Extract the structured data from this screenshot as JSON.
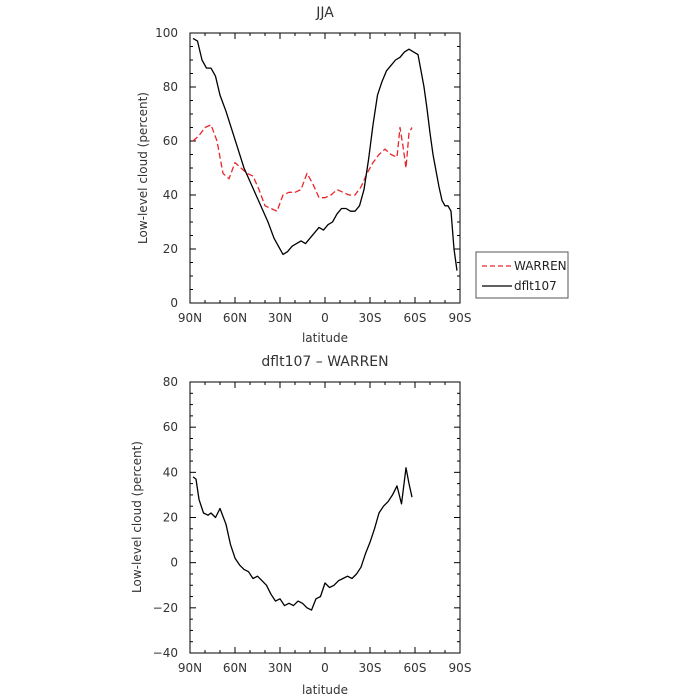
{
  "chart_data": [
    {
      "type": "line",
      "title": "JJA",
      "xlabel": "latitude",
      "ylabel": "Low-level cloud (percent)",
      "xlim": [
        90,
        -90
      ],
      "ylim": [
        0,
        100
      ],
      "xticks": [
        90,
        60,
        30,
        0,
        -30,
        -60,
        -90
      ],
      "xtick_labels": [
        "90N",
        "60N",
        "30N",
        "0",
        "30S",
        "60S",
        "90S"
      ],
      "yticks": [
        0,
        20,
        40,
        60,
        80,
        100
      ],
      "ytick_labels": [
        "0",
        "20",
        "40",
        "60",
        "80",
        "100"
      ],
      "legend": {
        "placement": "outside-right",
        "entries": [
          "WARREN",
          "dflt107"
        ]
      },
      "series": [
        {
          "name": "WARREN",
          "color": "#e8262a",
          "dash": true,
          "x": [
            88,
            84,
            80,
            76,
            72,
            68,
            64,
            60,
            56,
            52,
            48,
            44,
            40,
            36,
            32,
            28,
            24,
            20,
            16,
            12,
            8,
            4,
            0,
            -4,
            -8,
            -12,
            -16,
            -20,
            -24,
            -28,
            -32,
            -36,
            -40,
            -44,
            -48,
            -50,
            -52,
            -54,
            -56,
            -58
          ],
          "y": [
            60,
            62,
            65,
            66,
            60,
            48,
            46,
            52,
            50,
            48,
            47,
            42,
            36,
            35,
            34,
            40,
            41,
            41,
            42,
            48,
            44,
            39,
            39,
            40,
            42,
            41,
            40,
            40,
            43,
            48,
            52,
            55,
            57,
            55,
            54,
            65,
            58,
            50,
            63,
            65
          ]
        },
        {
          "name": "dflt107",
          "color": "#000000",
          "dash": false,
          "x": [
            88,
            85,
            82,
            79,
            76,
            73,
            70,
            66,
            62,
            58,
            54,
            50,
            46,
            42,
            38,
            34,
            31,
            28,
            25,
            22,
            19,
            16,
            13,
            10,
            7,
            4,
            1,
            -2,
            -5,
            -8,
            -11,
            -14,
            -17,
            -20,
            -23,
            -26,
            -29,
            -32,
            -35,
            -38,
            -41,
            -44,
            -47,
            -50,
            -53,
            -56,
            -59,
            -62,
            -64,
            -66,
            -68,
            -70,
            -72,
            -74,
            -76,
            -78,
            -80,
            -82,
            -84,
            -86,
            -88
          ],
          "y": [
            98,
            97,
            90,
            87,
            87,
            84,
            77,
            71,
            64,
            57,
            50,
            45,
            40,
            35,
            30,
            24,
            21,
            18,
            19,
            21,
            22,
            23,
            22,
            24,
            26,
            28,
            27,
            29,
            30,
            33,
            35,
            35,
            34,
            34,
            36,
            42,
            53,
            66,
            77,
            82,
            86,
            88,
            90,
            91,
            93,
            94,
            93,
            92,
            86,
            80,
            72,
            63,
            55,
            49,
            43,
            38,
            36,
            36,
            34,
            20,
            12
          ]
        }
      ]
    },
    {
      "type": "line",
      "title": "dflt107 – WARREN",
      "xlabel": "latitude",
      "ylabel": "Low-level cloud (percent)",
      "xlim": [
        90,
        -90
      ],
      "ylim": [
        -40,
        80
      ],
      "xticks": [
        90,
        60,
        30,
        0,
        -30,
        -60,
        -90
      ],
      "xtick_labels": [
        "90N",
        "60N",
        "30N",
        "0",
        "30S",
        "60S",
        "90S"
      ],
      "yticks": [
        -40,
        -20,
        0,
        20,
        40,
        60,
        80
      ],
      "ytick_labels": [
        "−40",
        "−20",
        "0",
        "20",
        "40",
        "60",
        "80"
      ],
      "series": [
        {
          "color": "#000000",
          "dash": false,
          "x": [
            88,
            86,
            84,
            81,
            78,
            76,
            73,
            70,
            66,
            63,
            60,
            57,
            54,
            51,
            48,
            45,
            42,
            39,
            36,
            33,
            30,
            27,
            24,
            21,
            18,
            15,
            12,
            9,
            6,
            3,
            0,
            -3,
            -6,
            -9,
            -12,
            -15,
            -18,
            -21,
            -24,
            -27,
            -30,
            -33,
            -36,
            -39,
            -42,
            -45,
            -48,
            -51,
            -54,
            -56,
            -58
          ],
          "y": [
            38,
            37,
            28,
            22,
            21,
            22,
            20,
            24,
            17,
            8,
            2,
            -1,
            -3,
            -4,
            -7,
            -6,
            -8,
            -10,
            -14,
            -17,
            -16,
            -19,
            -18,
            -19,
            -17,
            -18,
            -20,
            -21,
            -16,
            -15,
            -9,
            -11,
            -10,
            -8,
            -7,
            -6,
            -7,
            -5,
            -2,
            4,
            9,
            15,
            22,
            25,
            27,
            30,
            34,
            26,
            42,
            35,
            29
          ]
        }
      ]
    }
  ]
}
